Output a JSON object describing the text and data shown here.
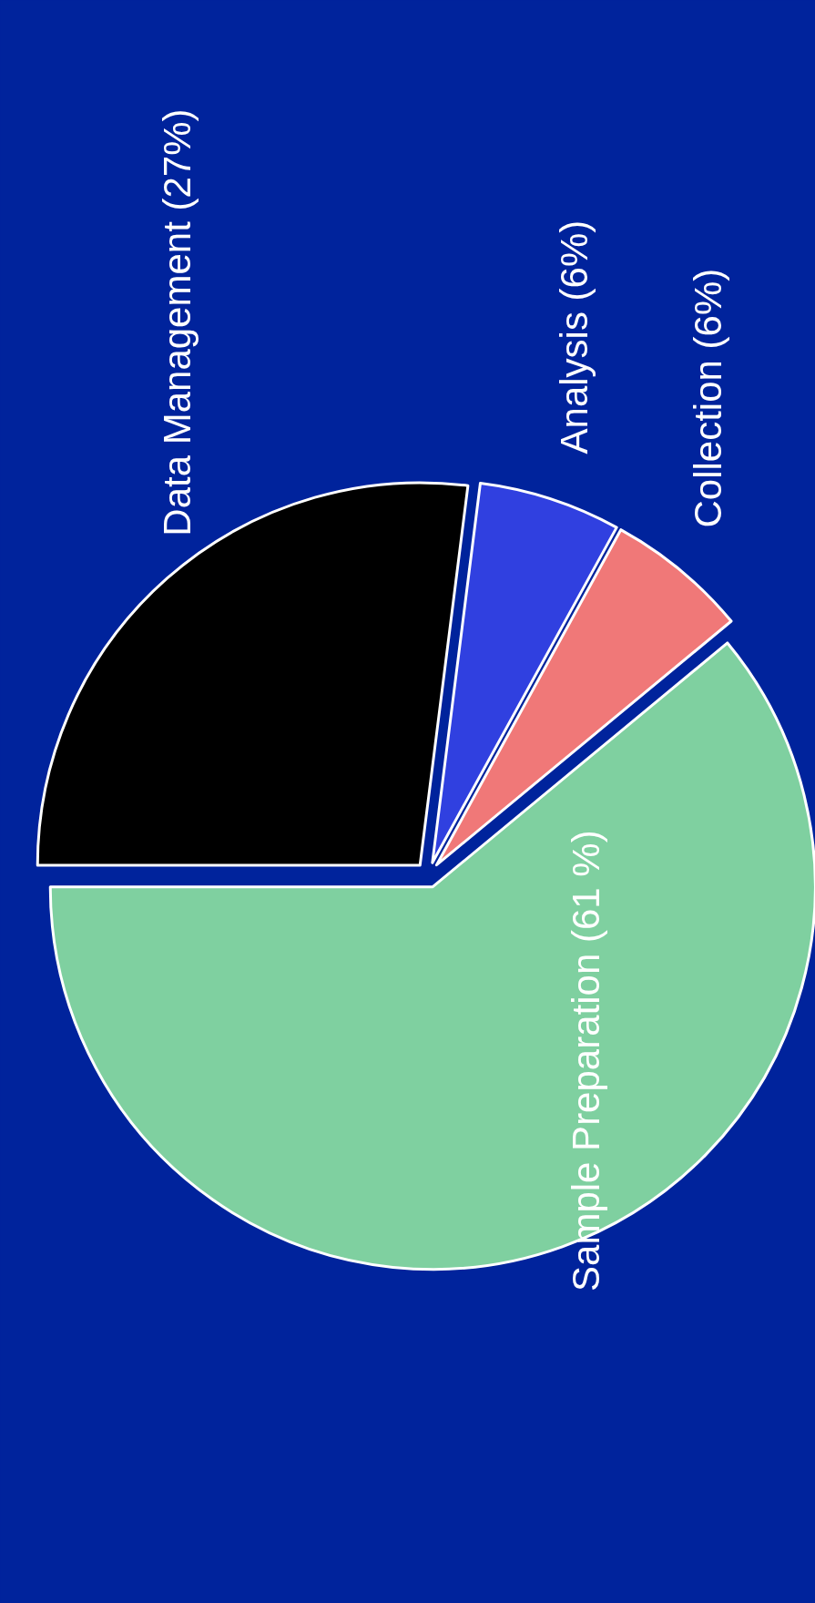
{
  "chart_data": {
    "type": "pie",
    "categories": [
      "Data Management",
      "Analysis",
      "Collection",
      "Sample Preparation"
    ],
    "values": [
      27,
      6,
      6,
      61
    ],
    "colors": [
      "#000000",
      "#3040e0",
      "#f07878",
      "#7fd0a0"
    ],
    "value_labels": [
      "(27%)",
      "(6%)",
      "(6%)",
      "(61 %)"
    ]
  }
}
